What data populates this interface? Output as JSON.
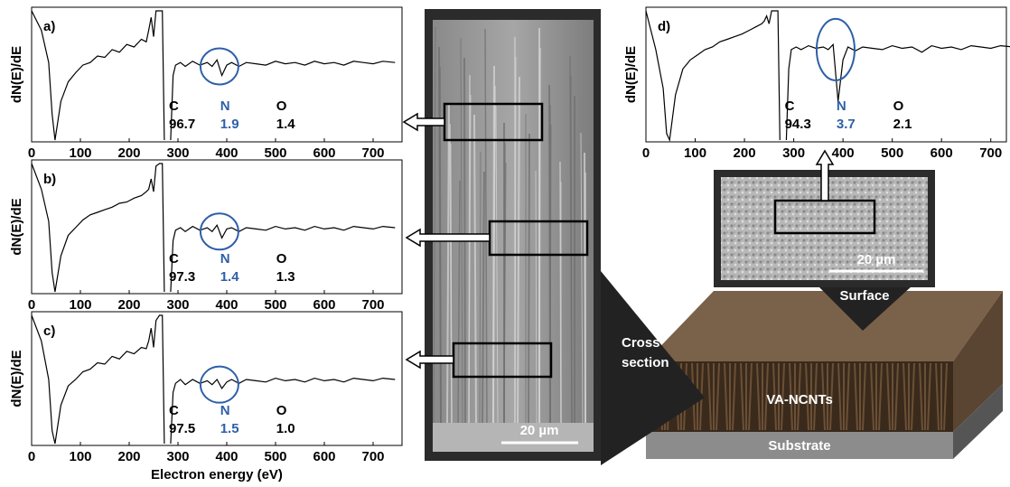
{
  "chart_data": [
    {
      "type": "line",
      "panel_label": "a)",
      "ylabel": "dN(E)/dE",
      "xlim": [
        0,
        750
      ],
      "xticks": [
        0,
        100,
        200,
        300,
        400,
        500,
        600,
        700
      ],
      "ylim": [
        0,
        100
      ],
      "x": [
        0,
        20,
        35,
        42,
        48,
        60,
        75,
        90,
        105,
        120,
        135,
        150,
        165,
        180,
        195,
        210,
        225,
        235,
        240,
        245,
        250,
        255,
        262,
        268,
        272,
        278,
        285,
        290,
        295,
        305,
        315,
        330,
        345,
        360,
        370,
        380,
        390,
        400,
        410,
        425,
        440,
        460,
        480,
        500,
        520,
        540,
        560,
        580,
        600,
        620,
        640,
        660,
        680,
        700,
        720,
        745
      ],
      "series": [
        {
          "color": "#000000",
          "values": [
            100,
            85,
            60,
            20,
            0,
            30,
            45,
            52,
            58,
            60,
            65,
            64,
            70,
            68,
            74,
            72,
            78,
            76,
            85,
            95,
            80,
            100,
            100,
            100,
            0,
            null,
            0,
            50,
            58,
            60,
            57,
            61,
            58,
            60,
            57,
            62,
            50,
            58,
            60,
            57,
            60,
            59,
            58,
            61,
            59,
            60,
            58,
            61,
            59,
            60,
            58,
            61,
            60,
            59,
            61,
            60
          ]
        }
      ],
      "composition": [
        {
          "element": "C",
          "value": "96.7"
        },
        {
          "element": "N",
          "value": "1.9"
        },
        {
          "element": "O",
          "value": "1.4"
        }
      ]
    },
    {
      "type": "line",
      "panel_label": "b)",
      "ylabel": "dN(E)/dE",
      "xlim": [
        0,
        750
      ],
      "xticks": [
        0,
        100,
        200,
        300,
        400,
        500,
        600,
        700
      ],
      "ylim": [
        0,
        100
      ],
      "x": [
        0,
        20,
        35,
        42,
        48,
        60,
        75,
        90,
        105,
        120,
        135,
        150,
        165,
        180,
        195,
        210,
        225,
        235,
        240,
        245,
        250,
        255,
        262,
        268,
        272,
        278,
        285,
        290,
        295,
        305,
        315,
        330,
        345,
        360,
        370,
        380,
        390,
        400,
        410,
        425,
        440,
        460,
        480,
        500,
        520,
        540,
        560,
        580,
        600,
        620,
        640,
        660,
        680,
        700,
        720,
        745
      ],
      "series": [
        {
          "color": "#000000",
          "values": [
            100,
            80,
            55,
            15,
            0,
            28,
            44,
            50,
            56,
            60,
            62,
            64,
            66,
            69,
            70,
            73,
            75,
            78,
            80,
            88,
            78,
            98,
            100,
            100,
            0,
            null,
            0,
            40,
            48,
            50,
            47,
            51,
            48,
            50,
            47,
            52,
            42,
            49,
            50,
            47,
            50,
            49,
            48,
            51,
            49,
            50,
            48,
            51,
            49,
            50,
            48,
            51,
            50,
            49,
            51,
            50
          ]
        }
      ],
      "composition": [
        {
          "element": "C",
          "value": "97.3"
        },
        {
          "element": "N",
          "value": "1.4"
        },
        {
          "element": "O",
          "value": "1.3"
        }
      ]
    },
    {
      "type": "line",
      "panel_label": "c)",
      "ylabel": "dN(E)/dE",
      "xlabel": "Electron energy (eV)",
      "xlim": [
        0,
        750
      ],
      "xticks": [
        0,
        100,
        200,
        300,
        400,
        500,
        600,
        700
      ],
      "ylim": [
        0,
        100
      ],
      "x": [
        0,
        20,
        35,
        42,
        48,
        60,
        75,
        90,
        105,
        120,
        135,
        150,
        165,
        180,
        195,
        210,
        225,
        235,
        240,
        245,
        250,
        255,
        262,
        268,
        272,
        278,
        285,
        290,
        295,
        305,
        315,
        330,
        345,
        360,
        370,
        380,
        390,
        400,
        410,
        425,
        440,
        460,
        480,
        500,
        520,
        540,
        560,
        580,
        600,
        620,
        640,
        660,
        680,
        700,
        720,
        745
      ],
      "series": [
        {
          "color": "#000000",
          "values": [
            100,
            80,
            50,
            10,
            0,
            30,
            45,
            50,
            56,
            58,
            63,
            62,
            68,
            66,
            72,
            70,
            75,
            74,
            80,
            90,
            75,
            96,
            100,
            100,
            0,
            null,
            0,
            40,
            47,
            50,
            46,
            50,
            47,
            49,
            46,
            50,
            43,
            48,
            50,
            47,
            50,
            49,
            48,
            51,
            49,
            50,
            48,
            51,
            49,
            50,
            48,
            51,
            50,
            49,
            51,
            50
          ]
        }
      ],
      "composition": [
        {
          "element": "C",
          "value": "97.5"
        },
        {
          "element": "N",
          "value": "1.5"
        },
        {
          "element": "O",
          "value": "1.0"
        }
      ]
    },
    {
      "type": "line",
      "panel_label": "d)",
      "ylabel": "dN(E)/dE",
      "xlim": [
        0,
        750
      ],
      "xticks": [
        0,
        100,
        200,
        300,
        400,
        500,
        600,
        700
      ],
      "ylim": [
        0,
        100
      ],
      "x": [
        0,
        20,
        35,
        42,
        48,
        60,
        75,
        90,
        105,
        120,
        135,
        150,
        165,
        180,
        195,
        210,
        225,
        235,
        240,
        245,
        250,
        255,
        262,
        268,
        272,
        278,
        285,
        290,
        295,
        305,
        315,
        330,
        345,
        360,
        370,
        380,
        390,
        400,
        410,
        425,
        440,
        460,
        480,
        500,
        520,
        540,
        560,
        580,
        600,
        620,
        640,
        660,
        680,
        700,
        720,
        745
      ],
      "series": [
        {
          "color": "#000000",
          "values": [
            100,
            70,
            40,
            5,
            0,
            35,
            55,
            62,
            66,
            70,
            72,
            76,
            78,
            80,
            82,
            85,
            88,
            90,
            92,
            96,
            90,
            100,
            100,
            100,
            0,
            null,
            0,
            55,
            70,
            72,
            70,
            73,
            71,
            72,
            70,
            74,
            30,
            62,
            72,
            69,
            72,
            71,
            70,
            73,
            71,
            72,
            68,
            73,
            71,
            72,
            70,
            73,
            72,
            71,
            73,
            72
          ]
        }
      ],
      "composition": [
        {
          "element": "C",
          "value": "94.3"
        },
        {
          "element": "N",
          "value": "3.7"
        },
        {
          "element": "O",
          "value": "2.1"
        }
      ]
    }
  ],
  "labels": {
    "scale_bar_cross": "20 µm",
    "scale_bar_surface": "20 µm",
    "cross_section": [
      "Cross",
      "section"
    ],
    "surface": "Surface",
    "layer": "VA-NCNTs",
    "substrate": "Substrate"
  }
}
